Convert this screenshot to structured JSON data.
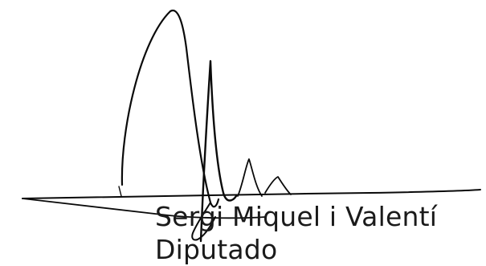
{
  "signature": {
    "name": "Sergi Miquel i Valentí",
    "role": "Diputado",
    "ink_color": "#0a0a0a",
    "text_color": "#1a1a1a"
  }
}
